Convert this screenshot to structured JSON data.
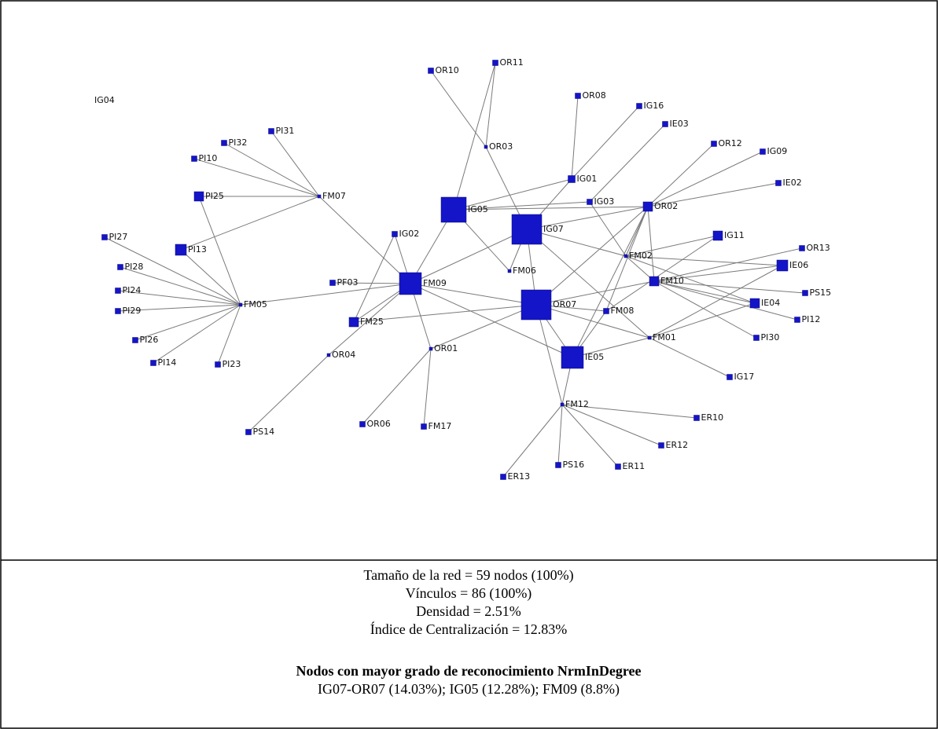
{
  "nodes": [
    {
      "label": "IG04"
    },
    {
      "label": "OR10"
    },
    {
      "label": "OR11"
    },
    {
      "label": "OR08"
    },
    {
      "label": "IG16"
    },
    {
      "label": "IE03"
    },
    {
      "label": "OR12"
    },
    {
      "label": "IG09"
    },
    {
      "label": "IE02"
    },
    {
      "label": "PI31"
    },
    {
      "label": "PI32"
    },
    {
      "label": "PI10"
    },
    {
      "label": "PI25"
    },
    {
      "label": "FM07"
    },
    {
      "label": "OR03"
    },
    {
      "label": "IG01"
    },
    {
      "label": "IG03"
    },
    {
      "label": "IG05"
    },
    {
      "label": "IG07"
    },
    {
      "label": "OR02"
    },
    {
      "label": "IG02"
    },
    {
      "label": "PI27"
    },
    {
      "label": "PI13"
    },
    {
      "label": "IG11"
    },
    {
      "label": "OR13"
    },
    {
      "label": "FM02"
    },
    {
      "label": "IE06"
    },
    {
      "label": "PI28"
    },
    {
      "label": "FM06"
    },
    {
      "label": "FM09"
    },
    {
      "label": "PF03"
    },
    {
      "label": "FM10"
    },
    {
      "label": "PI24"
    },
    {
      "label": "OR07"
    },
    {
      "label": "PS15"
    },
    {
      "label": "FM05"
    },
    {
      "label": "PI29"
    },
    {
      "label": "IE04"
    },
    {
      "label": "FM08"
    },
    {
      "label": "PI12"
    },
    {
      "label": "FM25"
    },
    {
      "label": "FM01"
    },
    {
      "label": "PI30"
    },
    {
      "label": "PI26"
    },
    {
      "label": "OR01"
    },
    {
      "label": "IE05"
    },
    {
      "label": "OR04"
    },
    {
      "label": "PI14"
    },
    {
      "label": "PI23"
    },
    {
      "label": "IG17"
    },
    {
      "label": "FM12"
    },
    {
      "label": "ER10"
    },
    {
      "label": "OR06"
    },
    {
      "label": "FM17"
    },
    {
      "label": "PS14"
    },
    {
      "label": "ER12"
    },
    {
      "label": "PS16"
    },
    {
      "label": "ER11"
    },
    {
      "label": "ER13"
    }
  ],
  "caption": {
    "lines": [
      "Tamaño de la red = 59 nodos (100%)",
      "Vínculos = 86  (100%)",
      "Densidad = 2.51%",
      "Índice de Centralización = 12.83%"
    ],
    "heading": "Nodos con mayor grado de reconocimiento NrmInDegree",
    "result": "IG07-OR07 (14.03%); IG05 (12.28%); FM09 (8.8%)"
  }
}
